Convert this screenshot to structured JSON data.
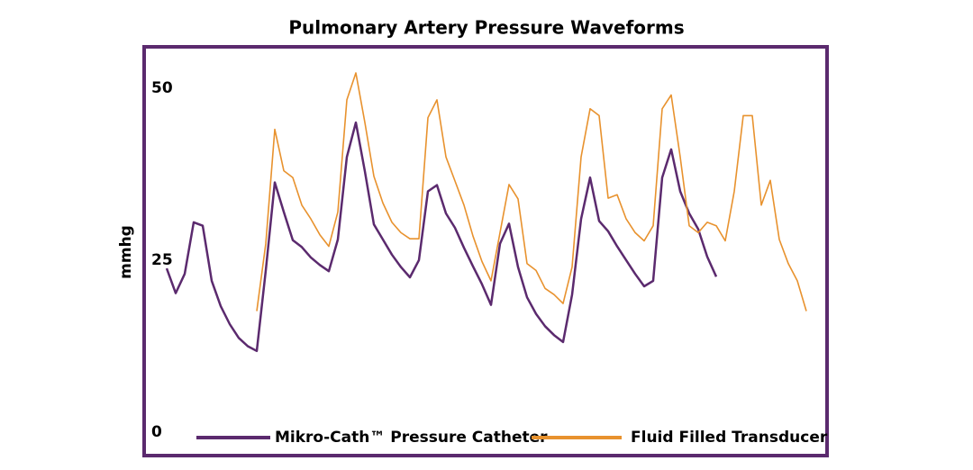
{
  "chart_data": {
    "type": "line",
    "title": "Pulmonary Artery Pressure Waveforms",
    "y_label": "mmhg",
    "ylim": [
      -3.4,
      56
    ],
    "yticks": [
      0,
      25,
      50
    ],
    "grid": false,
    "legend": "bottom",
    "series": [
      {
        "name": "Mikro-Cath™ Pressure Catheter",
        "color": "#5b2a6e",
        "values": [
          23.8,
          20.2,
          23,
          30.5,
          30,
          22,
          18.3,
          15.7,
          13.7,
          12.5,
          11.8,
          23.5,
          36.3,
          32,
          27.9,
          26.9,
          25.4,
          24.3,
          23.4,
          28,
          40,
          45,
          37.9,
          30.2,
          28,
          25.8,
          24,
          22.5,
          25,
          35,
          35.9,
          31.8,
          29.7,
          26.8,
          24.1,
          21.5,
          18.5,
          27.4,
          30.3,
          24,
          19.6,
          17.2,
          15.4,
          14.1,
          13.1,
          20,
          31,
          37,
          30.7,
          29.2,
          27,
          25,
          23,
          21.2,
          22,
          37,
          41.1,
          35,
          31.8,
          29.5,
          25.5,
          22.6,
          null,
          null,
          null,
          null,
          null,
          null,
          null,
          null,
          null,
          null
        ]
      },
      {
        "name": "Fluid Filled Transducer",
        "color": "#e8922e",
        "values": [
          null,
          null,
          null,
          null,
          null,
          null,
          null,
          null,
          null,
          null,
          17.6,
          27.4,
          44,
          38,
          37,
          33,
          31,
          28.7,
          27,
          32,
          48.3,
          52.2,
          45,
          37.2,
          33.3,
          30.5,
          29,
          28.1,
          28.1,
          45.7,
          48.3,
          40,
          36.5,
          33,
          28.5,
          24.8,
          22,
          29,
          36,
          33.9,
          24.5,
          23.5,
          20.9,
          20,
          18.7,
          24,
          40,
          47,
          46,
          34,
          34.5,
          31,
          29,
          27.8,
          30,
          47,
          49,
          40,
          30,
          29,
          30.5,
          30,
          27.8,
          35,
          46,
          46,
          33,
          36.6,
          28,
          24.5,
          22,
          17.6
        ]
      }
    ]
  }
}
